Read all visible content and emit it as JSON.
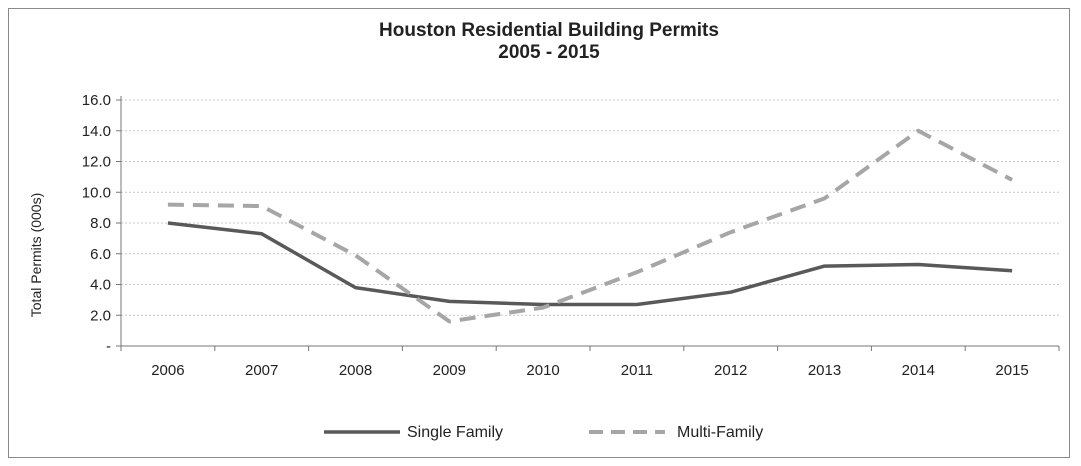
{
  "chart_data": {
    "type": "line",
    "title": "Houston Residential Building Permits",
    "subtitle": "2005 - 2015",
    "xlabel": "",
    "ylabel": "Total Permits (000s)",
    "categories": [
      "2006",
      "2007",
      "2008",
      "2009",
      "2010",
      "2011",
      "2012",
      "2013",
      "2014",
      "2015"
    ],
    "y_tick_labels": [
      "-",
      "2.0",
      "4.0",
      "6.0",
      "8.0",
      "10.0",
      "12.0",
      "14.0",
      "16.0"
    ],
    "ylim": [
      0,
      16
    ],
    "grid": true,
    "legend_position": "bottom",
    "series": [
      {
        "name": "Single Family",
        "style": "solid",
        "color": "#595959",
        "values": [
          8.0,
          7.3,
          3.8,
          2.9,
          2.7,
          2.7,
          3.5,
          5.2,
          5.3,
          4.9
        ]
      },
      {
        "name": "Multi-Family",
        "style": "dashed",
        "color": "#a6a6a6",
        "values": [
          9.2,
          9.1,
          5.9,
          1.6,
          2.5,
          4.8,
          7.4,
          9.6,
          14.0,
          10.8
        ]
      }
    ]
  }
}
